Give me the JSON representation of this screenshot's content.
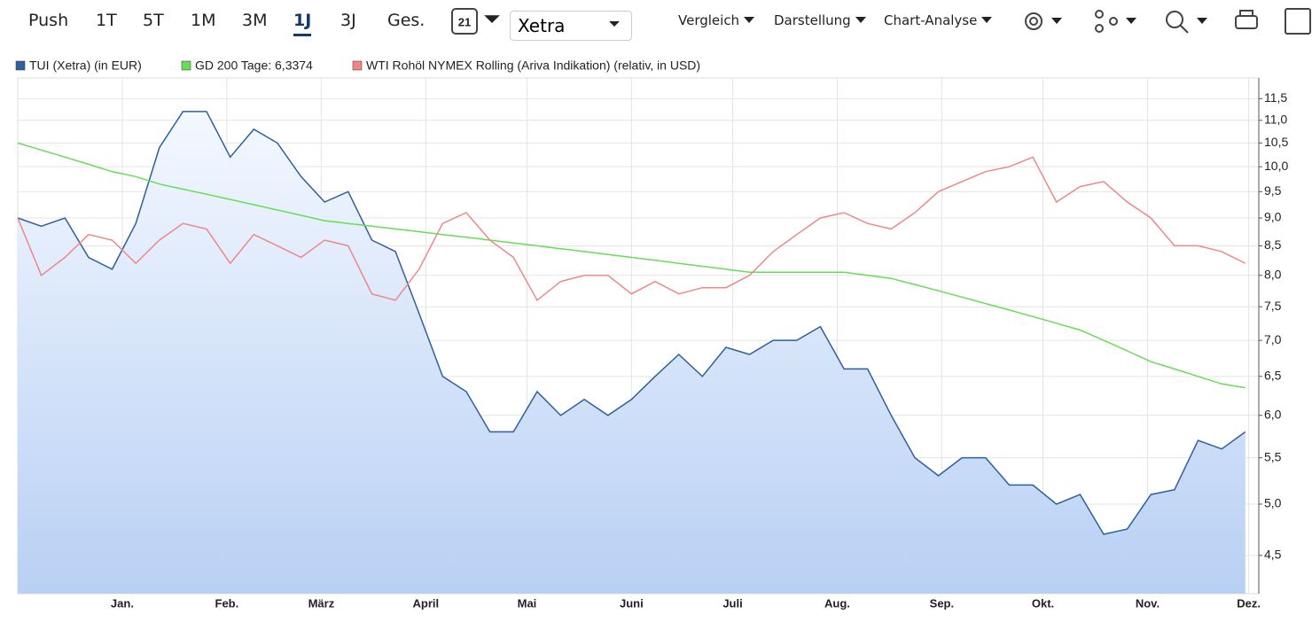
{
  "toolbar": {
    "ranges": [
      "Push",
      "1T",
      "5T",
      "1M",
      "3M",
      "1J",
      "3J",
      "Ges."
    ],
    "active": 5,
    "calendar_day": "21",
    "exchange": "Xetra",
    "menus": [
      "Vergleich",
      "Darstellung",
      "Chart-Analyse"
    ]
  },
  "chart_data": {
    "type": "line",
    "log_scale": true,
    "grid": true,
    "x": [
      0,
      7,
      14,
      21,
      28,
      35,
      42,
      49,
      56,
      63,
      70,
      77,
      84,
      91,
      98,
      105,
      112,
      119,
      126,
      133,
      140,
      147,
      154,
      161,
      168,
      175,
      182,
      189,
      196,
      203,
      210,
      217,
      224,
      231,
      238,
      245,
      252,
      259,
      266,
      273,
      280,
      287,
      294,
      301,
      308,
      315,
      322,
      329,
      336,
      343,
      350,
      357,
      364
    ],
    "xlim": [
      0,
      368
    ],
    "xticks": [
      {
        "value": 31,
        "label": "Jan."
      },
      {
        "value": 62,
        "label": "Feb."
      },
      {
        "value": 90,
        "label": "März"
      },
      {
        "value": 121,
        "label": "April"
      },
      {
        "value": 151,
        "label": "Mai"
      },
      {
        "value": 182,
        "label": "Juni"
      },
      {
        "value": 212,
        "label": "Juli"
      },
      {
        "value": 243,
        "label": "Aug."
      },
      {
        "value": 274,
        "label": "Sep."
      },
      {
        "value": 304,
        "label": "Okt."
      },
      {
        "value": 335,
        "label": "Nov."
      },
      {
        "value": 365,
        "label": "Dez."
      }
    ],
    "ylim": [
      4.16,
      12.0
    ],
    "yticks": [
      {
        "value": 4.5,
        "label": "4,5"
      },
      {
        "value": 5.0,
        "label": "5,0"
      },
      {
        "value": 5.5,
        "label": "5,5"
      },
      {
        "value": 6.0,
        "label": "6,0"
      },
      {
        "value": 6.5,
        "label": "6,5"
      },
      {
        "value": 7.0,
        "label": "7,0"
      },
      {
        "value": 7.5,
        "label": "7,5"
      },
      {
        "value": 8.0,
        "label": "8,0"
      },
      {
        "value": 8.5,
        "label": "8,5"
      },
      {
        "value": 9.0,
        "label": "9,0"
      },
      {
        "value": 9.5,
        "label": "9,5"
      },
      {
        "value": 10.0,
        "label": "10,0"
      },
      {
        "value": 10.5,
        "label": "10,5"
      },
      {
        "value": 11.0,
        "label": "11,0"
      },
      {
        "value": 11.5,
        "label": "11,5"
      }
    ],
    "series": [
      {
        "name": "TUI (Xetra) (in EUR)",
        "color": "#2f5f9e",
        "area": true,
        "values": [
          9.0,
          8.85,
          9.0,
          8.3,
          8.1,
          8.9,
          10.4,
          11.2,
          11.2,
          10.2,
          10.8,
          10.5,
          9.8,
          9.3,
          9.5,
          8.6,
          8.4,
          7.4,
          6.5,
          6.3,
          5.8,
          5.8,
          6.3,
          6.0,
          6.2,
          6.0,
          6.2,
          6.5,
          6.8,
          6.5,
          6.9,
          6.8,
          7.0,
          7.0,
          7.2,
          6.6,
          6.6,
          6.0,
          5.5,
          5.3,
          5.5,
          5.5,
          5.2,
          5.2,
          5.0,
          5.1,
          4.7,
          4.75,
          5.1,
          5.15,
          5.7,
          5.6,
          5.8
        ]
      },
      {
        "name": "GD 200 Tage: 6,3374",
        "color": "#66dd55",
        "values": [
          10.5,
          10.35,
          10.2,
          10.05,
          9.9,
          9.8,
          9.65,
          9.55,
          9.45,
          9.35,
          9.25,
          9.15,
          9.05,
          8.95,
          8.9,
          8.85,
          8.8,
          8.75,
          8.7,
          8.65,
          8.6,
          8.55,
          8.5,
          8.45,
          8.4,
          8.35,
          8.3,
          8.25,
          8.2,
          8.15,
          8.1,
          8.05,
          8.05,
          8.05,
          8.05,
          8.05,
          8.0,
          7.95,
          7.85,
          7.75,
          7.65,
          7.55,
          7.45,
          7.35,
          7.25,
          7.15,
          7.0,
          6.85,
          6.7,
          6.6,
          6.5,
          6.4,
          6.35
        ]
      },
      {
        "name": "WTI Rohöl NYMEX Rolling (Ariva Indikation) (relativ, in USD)",
        "color": "#ee8888",
        "values": [
          9.0,
          8.0,
          8.3,
          8.7,
          8.6,
          8.2,
          8.6,
          8.9,
          8.8,
          8.2,
          8.7,
          8.5,
          8.3,
          8.6,
          8.5,
          7.7,
          7.6,
          8.1,
          8.9,
          9.1,
          8.6,
          8.3,
          7.6,
          7.9,
          8.0,
          8.0,
          7.7,
          7.9,
          7.7,
          7.8,
          7.8,
          8.0,
          8.4,
          8.7,
          9.0,
          9.1,
          8.9,
          8.8,
          9.1,
          9.5,
          9.7,
          9.9,
          10.0,
          10.2,
          9.3,
          9.6,
          9.7,
          9.3,
          9.0,
          8.5,
          8.5,
          8.4,
          8.2
        ]
      }
    ]
  }
}
